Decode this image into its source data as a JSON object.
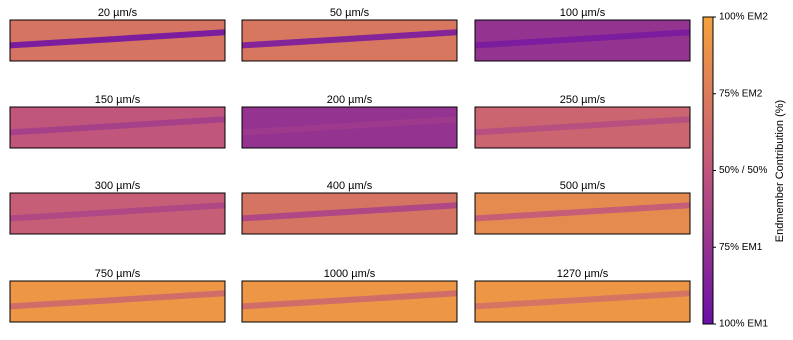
{
  "chart_data": {
    "type": "heatmap-grid",
    "colorbar_label": "Endmember Contribution (%)",
    "clim": [
      0,
      100
    ],
    "colormap": [
      "#6a0fa6",
      "#c0567c",
      "#f5a23c"
    ],
    "ticks": [
      {
        "value": 0,
        "label": "100% EM1"
      },
      {
        "value": 25,
        "label": "75% EM1"
      },
      {
        "value": 50,
        "label": "50% / 50%"
      },
      {
        "value": 75,
        "label": "75% EM2"
      },
      {
        "value": 100,
        "label": "100% EM2"
      }
    ],
    "panels": [
      {
        "title": "20 µm/s",
        "background": 70,
        "track": 10
      },
      {
        "title": "50 µm/s",
        "background": 72,
        "track": 15
      },
      {
        "title": "100 µm/s",
        "background": 25,
        "track": 10
      },
      {
        "title": "150 µm/s",
        "background": 50,
        "track": 35
      },
      {
        "title": "200 µm/s",
        "background": 25,
        "track": 30
      },
      {
        "title": "250 µm/s",
        "background": 60,
        "track": 45
      },
      {
        "title": "300 µm/s",
        "background": 55,
        "track": 40
      },
      {
        "title": "400 µm/s",
        "background": 70,
        "track": 40
      },
      {
        "title": "500 µm/s",
        "background": 85,
        "track": 55
      },
      {
        "title": "750 µm/s",
        "background": 92,
        "track": 65
      },
      {
        "title": "1000 µm/s",
        "background": 92,
        "track": 65
      },
      {
        "title": "1270 µm/s",
        "background": 92,
        "track": 70
      }
    ]
  }
}
